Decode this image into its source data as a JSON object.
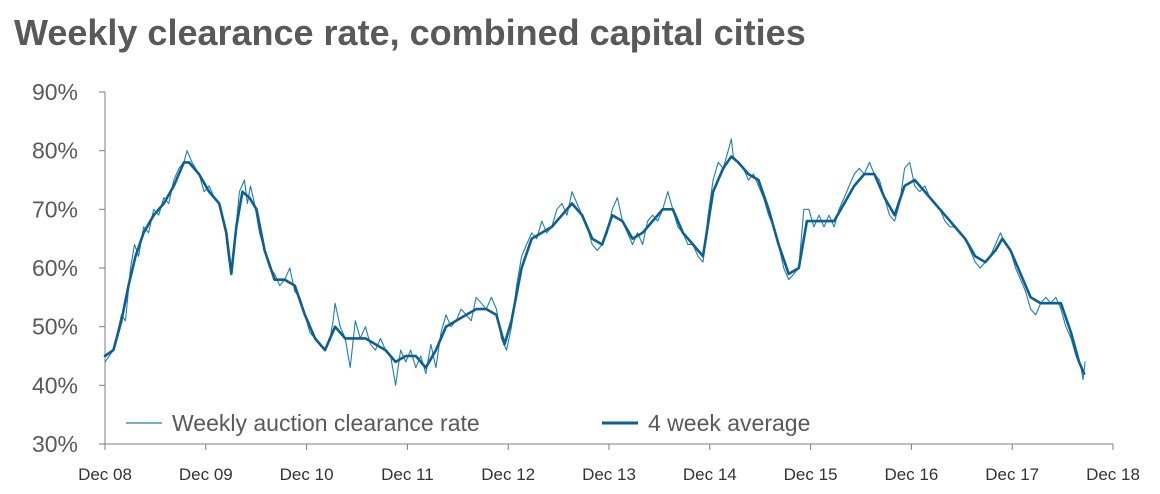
{
  "chart_data": {
    "type": "line",
    "title": "Weekly clearance rate, combined capital cities",
    "xlabel": "",
    "ylabel": "",
    "ylim": [
      30,
      90
    ],
    "xlim": [
      2008.917,
      2018.917
    ],
    "y_ticks": [
      "30%",
      "40%",
      "50%",
      "60%",
      "70%",
      "80%",
      "90%"
    ],
    "x_tick_labels": [
      "Dec 08",
      "Dec 09",
      "Dec 10",
      "Dec 11",
      "Dec 12",
      "Dec 13",
      "Dec 14",
      "Dec 15",
      "Dec 16",
      "Dec 17",
      "Dec 18"
    ],
    "legend": [
      "Weekly auction clearance rate",
      "4 week average"
    ],
    "legend_position": "bottom-left",
    "series": [
      {
        "name": "Weekly auction clearance rate",
        "color": "#1f7fb4",
        "style": "thin",
        "points": [
          [
            2008.917,
            44
          ],
          [
            2009.0,
            46
          ],
          [
            2009.08,
            52
          ],
          [
            2009.12,
            51
          ],
          [
            2009.17,
            60
          ],
          [
            2009.21,
            64
          ],
          [
            2009.25,
            62
          ],
          [
            2009.3,
            67
          ],
          [
            2009.35,
            66
          ],
          [
            2009.4,
            70
          ],
          [
            2009.45,
            69
          ],
          [
            2009.5,
            72
          ],
          [
            2009.55,
            71
          ],
          [
            2009.6,
            75
          ],
          [
            2009.65,
            77
          ],
          [
            2009.7,
            78
          ],
          [
            2009.73,
            80
          ],
          [
            2009.78,
            78
          ],
          [
            2009.85,
            76
          ],
          [
            2009.9,
            73
          ],
          [
            2009.95,
            74
          ],
          [
            2010.0,
            72
          ],
          [
            2010.05,
            71
          ],
          [
            2010.1,
            68
          ],
          [
            2010.14,
            62
          ],
          [
            2010.17,
            59
          ],
          [
            2010.2,
            64
          ],
          [
            2010.25,
            73
          ],
          [
            2010.3,
            75
          ],
          [
            2010.33,
            71
          ],
          [
            2010.36,
            74
          ],
          [
            2010.4,
            71
          ],
          [
            2010.45,
            66
          ],
          [
            2010.5,
            63
          ],
          [
            2010.55,
            60
          ],
          [
            2010.6,
            59
          ],
          [
            2010.65,
            57
          ],
          [
            2010.7,
            58
          ],
          [
            2010.75,
            60
          ],
          [
            2010.8,
            56
          ],
          [
            2010.85,
            55
          ],
          [
            2010.9,
            52
          ],
          [
            2010.95,
            49
          ],
          [
            2011.0,
            48
          ],
          [
            2011.05,
            47
          ],
          [
            2011.1,
            46
          ],
          [
            2011.15,
            48
          ],
          [
            2011.18,
            51
          ],
          [
            2011.2,
            54
          ],
          [
            2011.25,
            50
          ],
          [
            2011.3,
            48
          ],
          [
            2011.35,
            43
          ],
          [
            2011.4,
            51
          ],
          [
            2011.45,
            48
          ],
          [
            2011.5,
            50
          ],
          [
            2011.55,
            47
          ],
          [
            2011.6,
            46
          ],
          [
            2011.65,
            48
          ],
          [
            2011.7,
            46
          ],
          [
            2011.75,
            45
          ],
          [
            2011.8,
            40
          ],
          [
            2011.85,
            46
          ],
          [
            2011.9,
            44
          ],
          [
            2011.95,
            46
          ],
          [
            2012.0,
            43
          ],
          [
            2012.05,
            45
          ],
          [
            2012.1,
            42
          ],
          [
            2012.15,
            47
          ],
          [
            2012.2,
            43
          ],
          [
            2012.25,
            49
          ],
          [
            2012.3,
            52
          ],
          [
            2012.35,
            50
          ],
          [
            2012.4,
            51
          ],
          [
            2012.45,
            53
          ],
          [
            2012.5,
            52
          ],
          [
            2012.55,
            51
          ],
          [
            2012.6,
            55
          ],
          [
            2012.65,
            54
          ],
          [
            2012.7,
            53
          ],
          [
            2012.75,
            55
          ],
          [
            2012.8,
            53
          ],
          [
            2012.85,
            48
          ],
          [
            2012.9,
            46
          ],
          [
            2012.95,
            50
          ],
          [
            2013.0,
            57
          ],
          [
            2013.05,
            62
          ],
          [
            2013.1,
            64
          ],
          [
            2013.15,
            66
          ],
          [
            2013.2,
            65
          ],
          [
            2013.25,
            68
          ],
          [
            2013.3,
            66
          ],
          [
            2013.35,
            67
          ],
          [
            2013.4,
            70
          ],
          [
            2013.45,
            71
          ],
          [
            2013.5,
            69
          ],
          [
            2013.55,
            73
          ],
          [
            2013.6,
            71
          ],
          [
            2013.65,
            69
          ],
          [
            2013.7,
            67
          ],
          [
            2013.75,
            64
          ],
          [
            2013.8,
            63
          ],
          [
            2013.85,
            64
          ],
          [
            2013.9,
            66
          ],
          [
            2013.95,
            70
          ],
          [
            2014.0,
            72
          ],
          [
            2014.05,
            68
          ],
          [
            2014.1,
            66
          ],
          [
            2014.15,
            64
          ],
          [
            2014.2,
            66
          ],
          [
            2014.25,
            64
          ],
          [
            2014.3,
            68
          ],
          [
            2014.35,
            69
          ],
          [
            2014.4,
            68
          ],
          [
            2014.45,
            70
          ],
          [
            2014.5,
            73
          ],
          [
            2014.55,
            70
          ],
          [
            2014.6,
            67
          ],
          [
            2014.65,
            66
          ],
          [
            2014.7,
            64
          ],
          [
            2014.75,
            64
          ],
          [
            2014.8,
            62
          ],
          [
            2014.85,
            61
          ],
          [
            2014.9,
            69
          ],
          [
            2014.95,
            75
          ],
          [
            2015.0,
            78
          ],
          [
            2015.05,
            77
          ],
          [
            2015.1,
            80
          ],
          [
            2015.13,
            82
          ],
          [
            2015.15,
            79
          ],
          [
            2015.2,
            78
          ],
          [
            2015.25,
            77
          ],
          [
            2015.3,
            75
          ],
          [
            2015.35,
            76
          ],
          [
            2015.4,
            74
          ],
          [
            2015.45,
            72
          ],
          [
            2015.5,
            69
          ],
          [
            2015.55,
            67
          ],
          [
            2015.6,
            64
          ],
          [
            2015.65,
            60
          ],
          [
            2015.7,
            58
          ],
          [
            2015.75,
            59
          ],
          [
            2015.8,
            60
          ],
          [
            2015.85,
            70
          ],
          [
            2015.9,
            70
          ],
          [
            2015.95,
            67
          ],
          [
            2016.0,
            69
          ],
          [
            2016.05,
            67
          ],
          [
            2016.1,
            69
          ],
          [
            2016.15,
            67
          ],
          [
            2016.2,
            70
          ],
          [
            2016.25,
            72
          ],
          [
            2016.3,
            74
          ],
          [
            2016.35,
            76
          ],
          [
            2016.4,
            77
          ],
          [
            2016.45,
            76
          ],
          [
            2016.5,
            78
          ],
          [
            2016.55,
            76
          ],
          [
            2016.6,
            75
          ],
          [
            2016.65,
            72
          ],
          [
            2016.7,
            69
          ],
          [
            2016.75,
            68
          ],
          [
            2016.8,
            71
          ],
          [
            2016.85,
            77
          ],
          [
            2016.9,
            78
          ],
          [
            2016.95,
            74
          ],
          [
            2017.0,
            73
          ],
          [
            2017.05,
            74
          ],
          [
            2017.1,
            72
          ],
          [
            2017.15,
            71
          ],
          [
            2017.2,
            70
          ],
          [
            2017.25,
            68
          ],
          [
            2017.3,
            67
          ],
          [
            2017.35,
            67
          ],
          [
            2017.4,
            66
          ],
          [
            2017.45,
            65
          ],
          [
            2017.5,
            63
          ],
          [
            2017.55,
            61
          ],
          [
            2017.6,
            60
          ],
          [
            2017.65,
            61
          ],
          [
            2017.7,
            62
          ],
          [
            2017.75,
            64
          ],
          [
            2017.8,
            66
          ],
          [
            2017.85,
            64
          ],
          [
            2017.9,
            63
          ],
          [
            2017.95,
            60
          ],
          [
            2018.0,
            58
          ],
          [
            2018.05,
            56
          ],
          [
            2018.1,
            53
          ],
          [
            2018.15,
            52
          ],
          [
            2018.2,
            54
          ],
          [
            2018.25,
            55
          ],
          [
            2018.3,
            54
          ],
          [
            2018.35,
            55
          ],
          [
            2018.4,
            53
          ],
          [
            2018.45,
            50
          ],
          [
            2018.5,
            48
          ],
          [
            2018.55,
            45
          ],
          [
            2018.6,
            43
          ],
          [
            2018.62,
            41
          ],
          [
            2018.64,
            44
          ]
        ]
      },
      {
        "name": "4 week average",
        "color": "#0d5f93",
        "style": "thick",
        "points": [
          [
            2008.917,
            45
          ],
          [
            2009.0,
            46
          ],
          [
            2009.08,
            51
          ],
          [
            2009.15,
            57
          ],
          [
            2009.22,
            62
          ],
          [
            2009.3,
            66
          ],
          [
            2009.4,
            69
          ],
          [
            2009.5,
            71
          ],
          [
            2009.6,
            74
          ],
          [
            2009.7,
            78
          ],
          [
            2009.75,
            78
          ],
          [
            2009.85,
            76
          ],
          [
            2009.95,
            73
          ],
          [
            2010.05,
            71
          ],
          [
            2010.12,
            66
          ],
          [
            2010.17,
            59
          ],
          [
            2010.22,
            67
          ],
          [
            2010.28,
            73
          ],
          [
            2010.35,
            72
          ],
          [
            2010.42,
            70
          ],
          [
            2010.5,
            63
          ],
          [
            2010.6,
            58
          ],
          [
            2010.7,
            58
          ],
          [
            2010.8,
            57
          ],
          [
            2010.9,
            52
          ],
          [
            2011.0,
            48
          ],
          [
            2011.1,
            46
          ],
          [
            2011.2,
            50
          ],
          [
            2011.3,
            48
          ],
          [
            2011.4,
            48
          ],
          [
            2011.5,
            48
          ],
          [
            2011.6,
            47
          ],
          [
            2011.7,
            46
          ],
          [
            2011.8,
            44
          ],
          [
            2011.9,
            45
          ],
          [
            2012.0,
            45
          ],
          [
            2012.1,
            43
          ],
          [
            2012.2,
            46
          ],
          [
            2012.3,
            50
          ],
          [
            2012.4,
            51
          ],
          [
            2012.5,
            52
          ],
          [
            2012.6,
            53
          ],
          [
            2012.7,
            53
          ],
          [
            2012.8,
            52
          ],
          [
            2012.88,
            47
          ],
          [
            2012.95,
            51
          ],
          [
            2013.05,
            60
          ],
          [
            2013.15,
            65
          ],
          [
            2013.25,
            66
          ],
          [
            2013.35,
            67
          ],
          [
            2013.45,
            69
          ],
          [
            2013.55,
            71
          ],
          [
            2013.65,
            69
          ],
          [
            2013.75,
            65
          ],
          [
            2013.85,
            64
          ],
          [
            2013.95,
            69
          ],
          [
            2014.05,
            68
          ],
          [
            2014.15,
            65
          ],
          [
            2014.25,
            66
          ],
          [
            2014.35,
            68
          ],
          [
            2014.45,
            70
          ],
          [
            2014.55,
            70
          ],
          [
            2014.65,
            66
          ],
          [
            2014.75,
            64
          ],
          [
            2014.85,
            62
          ],
          [
            2014.95,
            73
          ],
          [
            2015.05,
            77
          ],
          [
            2015.13,
            79
          ],
          [
            2015.2,
            78
          ],
          [
            2015.3,
            76
          ],
          [
            2015.4,
            75
          ],
          [
            2015.5,
            70
          ],
          [
            2015.6,
            64
          ],
          [
            2015.7,
            59
          ],
          [
            2015.8,
            60
          ],
          [
            2015.88,
            68
          ],
          [
            2015.95,
            68
          ],
          [
            2016.05,
            68
          ],
          [
            2016.15,
            68
          ],
          [
            2016.25,
            71
          ],
          [
            2016.35,
            74
          ],
          [
            2016.45,
            76
          ],
          [
            2016.55,
            76
          ],
          [
            2016.65,
            72
          ],
          [
            2016.75,
            69
          ],
          [
            2016.85,
            74
          ],
          [
            2016.95,
            75
          ],
          [
            2017.05,
            73
          ],
          [
            2017.15,
            71
          ],
          [
            2017.25,
            69
          ],
          [
            2017.35,
            67
          ],
          [
            2017.45,
            65
          ],
          [
            2017.55,
            62
          ],
          [
            2017.65,
            61
          ],
          [
            2017.75,
            63
          ],
          [
            2017.82,
            65
          ],
          [
            2017.9,
            63
          ],
          [
            2018.0,
            59
          ],
          [
            2018.1,
            55
          ],
          [
            2018.2,
            54
          ],
          [
            2018.3,
            54
          ],
          [
            2018.4,
            54
          ],
          [
            2018.5,
            49
          ],
          [
            2018.58,
            44
          ],
          [
            2018.63,
            42
          ]
        ]
      }
    ]
  }
}
